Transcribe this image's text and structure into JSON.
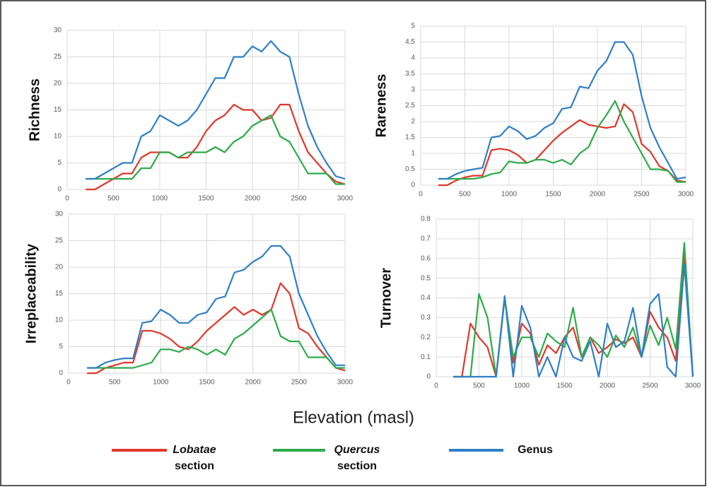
{
  "xlabel": "Elevation (masl)",
  "legend": [
    {
      "name": "Lobatae",
      "note": "section",
      "color": "#e0382c"
    },
    {
      "name": "Quercus",
      "note": "section",
      "color": "#2eaa4a"
    },
    {
      "name": "Genus",
      "color": "#2f7fc8"
    }
  ],
  "chart_data": [
    {
      "type": "line",
      "ylabel": "Richness",
      "x": [
        200,
        300,
        400,
        500,
        600,
        700,
        800,
        900,
        1000,
        1100,
        1200,
        1300,
        1400,
        1500,
        1600,
        1700,
        1800,
        1900,
        2000,
        2100,
        2200,
        2300,
        2400,
        2500,
        2600,
        2700,
        2800,
        2900,
        3000
      ],
      "xlim": [
        0,
        3000
      ],
      "xticks": [
        0,
        500,
        1000,
        1500,
        2000,
        2500,
        3000
      ],
      "ylim": [
        0,
        30
      ],
      "yticks": [
        0,
        5,
        10,
        15,
        20,
        25,
        30
      ],
      "grid": true,
      "series": [
        {
          "color": "#e0382c",
          "values": [
            0,
            0,
            1,
            2,
            3,
            3,
            6,
            7,
            7,
            7,
            6,
            6,
            8,
            11,
            13,
            14,
            16,
            15,
            15,
            13,
            13.5,
            16,
            16,
            11,
            7,
            5,
            3,
            1.5,
            1
          ]
        },
        {
          "color": "#2eaa4a",
          "values": [
            2,
            2,
            2,
            2,
            2,
            2,
            4,
            4,
            7,
            7,
            6,
            7,
            7,
            7,
            8,
            7,
            9,
            10,
            12,
            13,
            14,
            10,
            9,
            6,
            3,
            3,
            3,
            1,
            1
          ]
        },
        {
          "color": "#2f7fc8",
          "values": [
            2,
            2,
            3,
            4,
            5,
            5,
            10,
            11,
            14,
            13,
            12,
            13,
            15,
            18,
            21,
            21,
            25,
            25,
            27,
            26,
            28,
            26,
            25,
            18,
            12,
            8,
            5,
            2.5,
            2
          ]
        }
      ]
    },
    {
      "type": "line",
      "ylabel": "Rareness",
      "x": [
        200,
        300,
        400,
        500,
        600,
        700,
        800,
        900,
        1000,
        1100,
        1200,
        1300,
        1400,
        1500,
        1600,
        1700,
        1800,
        1900,
        2000,
        2100,
        2200,
        2300,
        2400,
        2500,
        2600,
        2700,
        2800,
        2900,
        3000
      ],
      "xlim": [
        0,
        3000
      ],
      "xticks": [
        0,
        500,
        1000,
        1500,
        2000,
        2500,
        3000
      ],
      "ylim": [
        0,
        5
      ],
      "yticks": [
        0,
        0.5,
        1,
        1.5,
        2,
        2.5,
        3,
        3.5,
        4,
        4.5,
        5
      ],
      "grid": true,
      "series": [
        {
          "color": "#e0382c",
          "values": [
            0,
            0,
            0.15,
            0.25,
            0.3,
            0.3,
            1.1,
            1.15,
            1.1,
            0.95,
            0.7,
            0.8,
            1.1,
            1.4,
            1.65,
            1.85,
            2.05,
            1.9,
            1.85,
            1.8,
            1.85,
            2.55,
            2.3,
            1.3,
            1.05,
            0.6,
            0.45,
            0.15,
            0.1
          ]
        },
        {
          "color": "#2eaa4a",
          "values": [
            0.2,
            0.2,
            0.2,
            0.2,
            0.2,
            0.25,
            0.35,
            0.4,
            0.75,
            0.7,
            0.7,
            0.8,
            0.8,
            0.7,
            0.8,
            0.65,
            1,
            1.2,
            1.8,
            2.2,
            2.65,
            2,
            1.5,
            1,
            0.5,
            0.5,
            0.45,
            0.1,
            0.1
          ]
        },
        {
          "color": "#2f7fc8",
          "values": [
            0.2,
            0.2,
            0.35,
            0.45,
            0.5,
            0.55,
            1.5,
            1.55,
            1.85,
            1.7,
            1.45,
            1.55,
            1.8,
            1.95,
            2.4,
            2.45,
            3.1,
            3.05,
            3.6,
            3.9,
            4.5,
            4.5,
            4.1,
            2.8,
            1.8,
            1.2,
            0.7,
            0.2,
            0.25
          ]
        }
      ]
    },
    {
      "type": "line",
      "ylabel": "Irreplaceability",
      "x": [
        200,
        300,
        400,
        500,
        600,
        700,
        800,
        900,
        1000,
        1100,
        1200,
        1300,
        1400,
        1500,
        1600,
        1700,
        1800,
        1900,
        2000,
        2100,
        2200,
        2300,
        2400,
        2500,
        2600,
        2700,
        2800,
        2900,
        3000
      ],
      "xlim": [
        0,
        3000
      ],
      "xticks": [
        0,
        500,
        1000,
        1500,
        2000,
        2500,
        3000
      ],
      "ylim": [
        0,
        30
      ],
      "yticks": [
        0,
        5,
        10,
        15,
        20,
        25,
        30
      ],
      "grid": true,
      "series": [
        {
          "color": "#e0382c",
          "values": [
            0,
            0,
            1,
            1.5,
            2,
            2,
            8,
            8,
            7.5,
            6.5,
            5,
            4.5,
            6,
            8,
            9.5,
            11,
            12.5,
            11,
            12,
            11,
            12,
            17,
            15,
            8.5,
            7.5,
            5,
            3,
            1,
            0.5
          ]
        },
        {
          "color": "#2eaa4a",
          "values": [
            1,
            1,
            1,
            1,
            1,
            1,
            1.5,
            2,
            4.5,
            4.5,
            4,
            5,
            4.5,
            3.5,
            4.5,
            3.5,
            6.5,
            7.5,
            9,
            10.5,
            12,
            7,
            6,
            6,
            3,
            3,
            3,
            1,
            1
          ]
        },
        {
          "color": "#2f7fc8",
          "values": [
            1,
            1,
            2,
            2.5,
            2.8,
            2.8,
            9.5,
            9.8,
            12,
            11,
            9.5,
            9.5,
            11,
            11.5,
            14,
            14.5,
            19,
            19.5,
            21,
            22,
            24,
            24,
            22,
            15,
            11,
            7,
            4,
            1.5,
            1.5
          ]
        }
      ]
    },
    {
      "type": "line",
      "ylabel": "Turnover",
      "x": [
        200,
        300,
        400,
        500,
        600,
        700,
        800,
        900,
        1000,
        1100,
        1200,
        1300,
        1400,
        1500,
        1600,
        1700,
        1800,
        1900,
        2000,
        2100,
        2200,
        2300,
        2400,
        2500,
        2600,
        2700,
        2800,
        2900,
        3000
      ],
      "xlim": [
        0,
        3000
      ],
      "xticks": [
        0,
        500,
        1000,
        1500,
        2000,
        2500,
        3000
      ],
      "ylim": [
        0,
        0.8
      ],
      "yticks": [
        0,
        0.1,
        0.2,
        0.3,
        0.4,
        0.5,
        0.6,
        0.7,
        0.8
      ],
      "grid": true,
      "series": [
        {
          "color": "#e0382c",
          "values": [
            0,
            0,
            0.27,
            0.2,
            0.15,
            0,
            0.4,
            0.07,
            0.27,
            0.22,
            0.06,
            0.16,
            0.12,
            0.2,
            0.25,
            0.1,
            0.2,
            0.12,
            0.15,
            0.19,
            0.17,
            0.2,
            0.1,
            0.33,
            0.25,
            0.2,
            0.08,
            0.63,
            0
          ]
        },
        {
          "color": "#2eaa4a",
          "values": [
            0,
            0,
            0,
            0.42,
            0.3,
            0,
            0.4,
            0.1,
            0.2,
            0.2,
            0.1,
            0.22,
            0.18,
            0.15,
            0.35,
            0.1,
            0.2,
            0.16,
            0.1,
            0.21,
            0.15,
            0.25,
            0.1,
            0.26,
            0.16,
            0.3,
            0.14,
            0.68,
            0
          ]
        },
        {
          "color": "#2f7fc8",
          "values": [
            0,
            0,
            0,
            0,
            0,
            0,
            0.41,
            0,
            0.36,
            0.25,
            0,
            0.1,
            0,
            0.2,
            0.1,
            0.08,
            0.18,
            0,
            0.27,
            0.15,
            0.18,
            0.35,
            0.1,
            0.37,
            0.42,
            0.05,
            0,
            0.57,
            0
          ]
        }
      ]
    }
  ]
}
